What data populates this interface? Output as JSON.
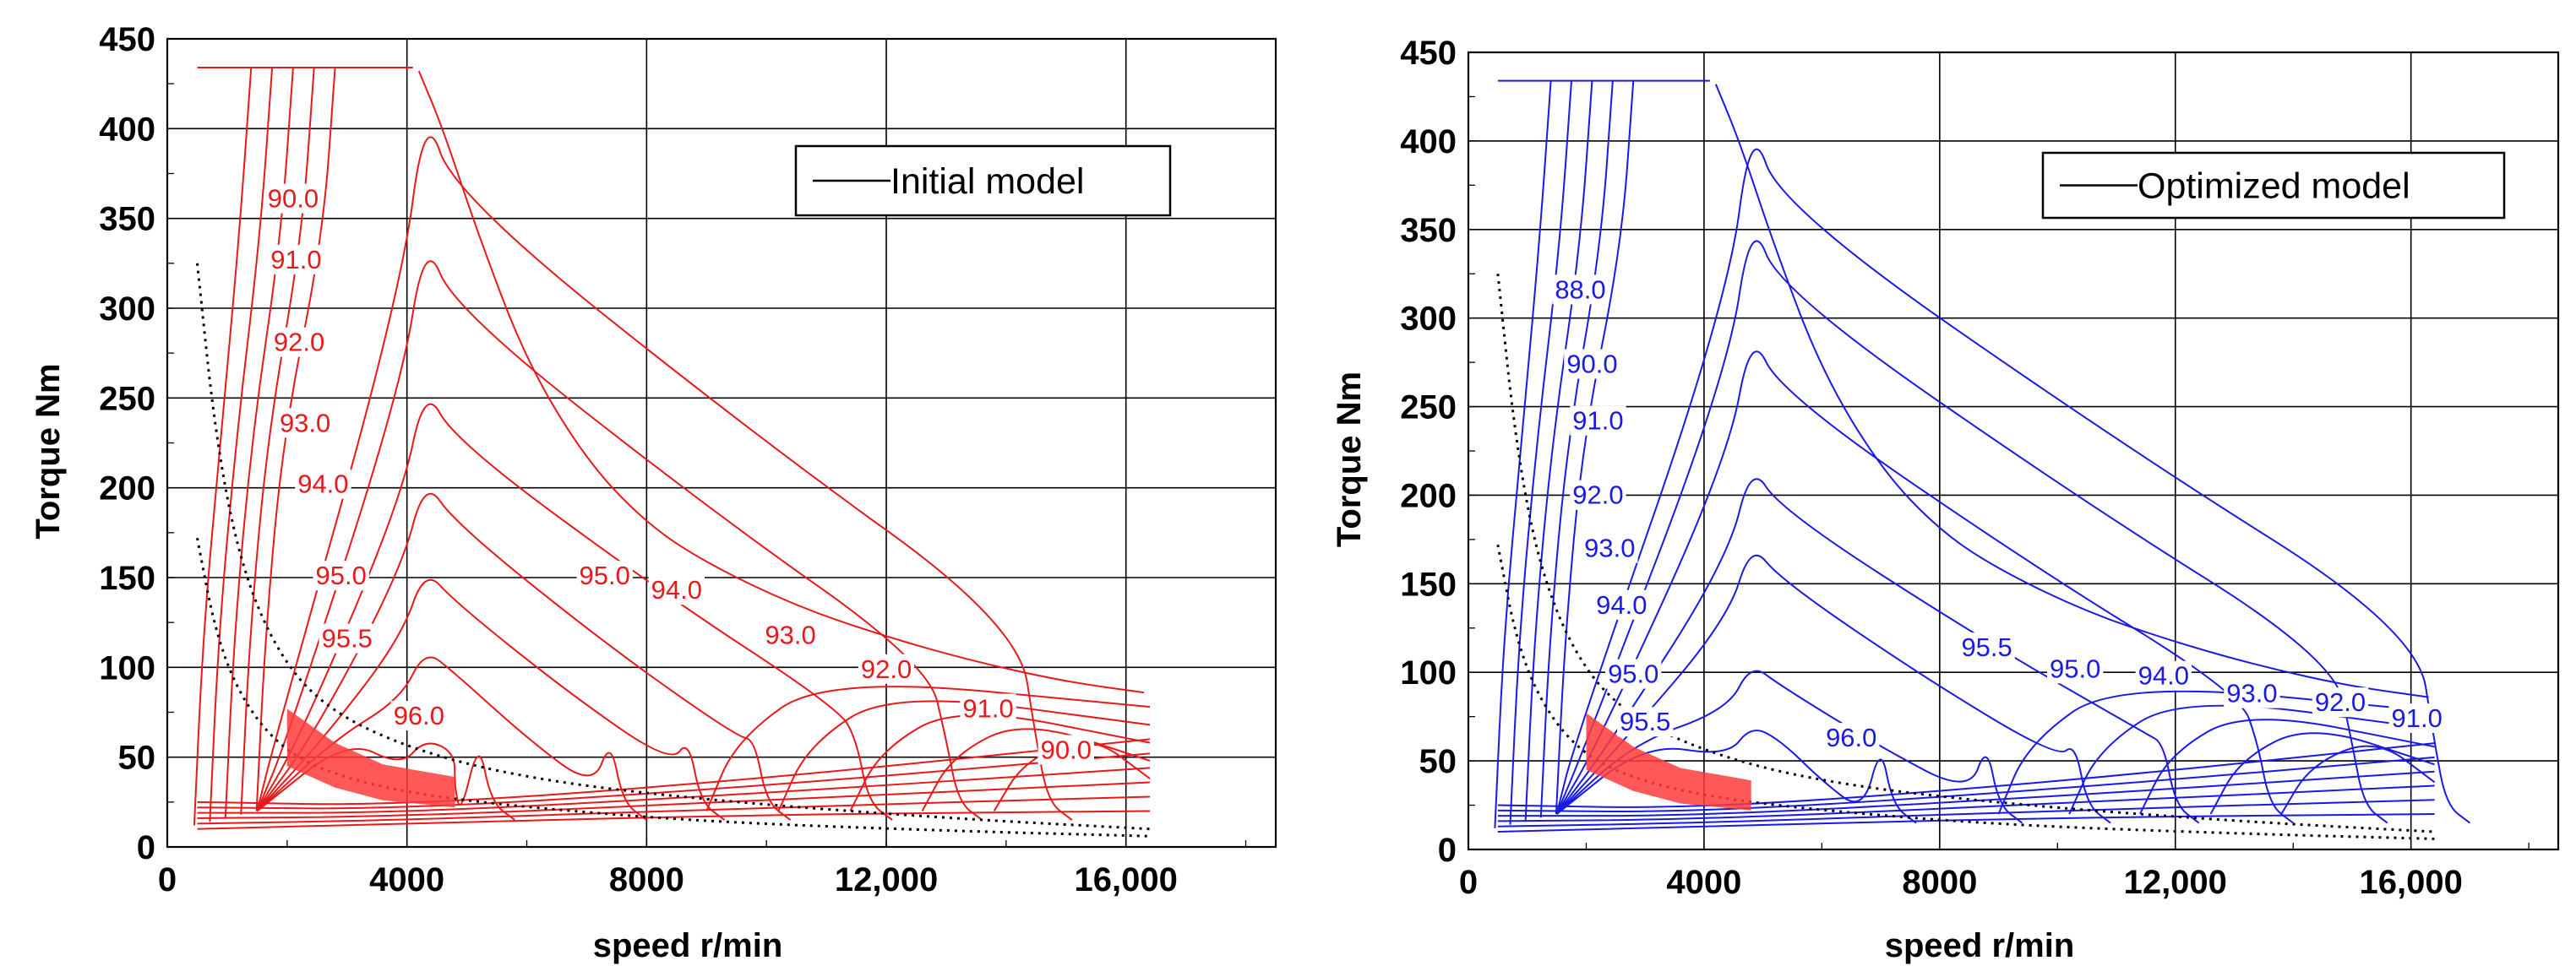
{
  "chart_data": [
    {
      "type": "contour",
      "legend": "Initial model",
      "line_color": "#e8191a",
      "region_color": "#ff3b3b",
      "xlabel": "speed r/min",
      "ylabel": "Torque Nm",
      "xlim": [
        0,
        18500
      ],
      "ylim": [
        0,
        450
      ],
      "xticks": [
        "0",
        "4000",
        "8000",
        "12,000",
        "16,000"
      ],
      "yticks": [
        "0",
        "50",
        "100",
        "150",
        "200",
        "250",
        "300",
        "350",
        "400",
        "450"
      ],
      "efficiency_labels": [
        {
          "text": "90.0",
          "x": 2100,
          "y": 360
        },
        {
          "text": "91.0",
          "x": 2150,
          "y": 326
        },
        {
          "text": "92.0",
          "x": 2200,
          "y": 280
        },
        {
          "text": "93.0",
          "x": 2300,
          "y": 235
        },
        {
          "text": "94.0",
          "x": 2600,
          "y": 201
        },
        {
          "text": "95.0",
          "x": 2900,
          "y": 150
        },
        {
          "text": "95.5",
          "x": 3000,
          "y": 115
        },
        {
          "text": "96.0",
          "x": 4200,
          "y": 72
        },
        {
          "text": "95.0",
          "x": 7300,
          "y": 150
        },
        {
          "text": "94.0",
          "x": 8500,
          "y": 142
        },
        {
          "text": "93.0",
          "x": 10400,
          "y": 117
        },
        {
          "text": "92.0",
          "x": 12000,
          "y": 98
        },
        {
          "text": "91.0",
          "x": 13700,
          "y": 76
        },
        {
          "text": "90.0",
          "x": 15000,
          "y": 53
        }
      ]
    },
    {
      "type": "contour",
      "legend": "Optimized model",
      "line_color": "#1a1ae6",
      "region_color": "#ff3b3b",
      "xlabel": "speed r/min",
      "ylabel": "Torque Nm",
      "xlim": [
        0,
        18500
      ],
      "ylim": [
        0,
        450
      ],
      "xticks": [
        "0",
        "4000",
        "8000",
        "12,000",
        "16,000"
      ],
      "yticks": [
        "0",
        "50",
        "100",
        "150",
        "200",
        "250",
        "300",
        "350",
        "400",
        "450"
      ],
      "efficiency_labels": [
        {
          "text": "88.0",
          "x": 1900,
          "y": 315
        },
        {
          "text": "90.0",
          "x": 2100,
          "y": 273
        },
        {
          "text": "91.0",
          "x": 2200,
          "y": 241
        },
        {
          "text": "92.0",
          "x": 2200,
          "y": 199
        },
        {
          "text": "93.0",
          "x": 2400,
          "y": 169
        },
        {
          "text": "94.0",
          "x": 2600,
          "y": 137
        },
        {
          "text": "95.0",
          "x": 2800,
          "y": 98
        },
        {
          "text": "95.5",
          "x": 3000,
          "y": 71
        },
        {
          "text": "96.0",
          "x": 6500,
          "y": 62
        },
        {
          "text": "95.5",
          "x": 8800,
          "y": 113
        },
        {
          "text": "95.0",
          "x": 10300,
          "y": 101
        },
        {
          "text": "94.0",
          "x": 11800,
          "y": 97
        },
        {
          "text": "93.0",
          "x": 13300,
          "y": 87
        },
        {
          "text": "92.0",
          "x": 14800,
          "y": 82
        },
        {
          "text": "91.0",
          "x": 16100,
          "y": 73
        }
      ]
    }
  ]
}
